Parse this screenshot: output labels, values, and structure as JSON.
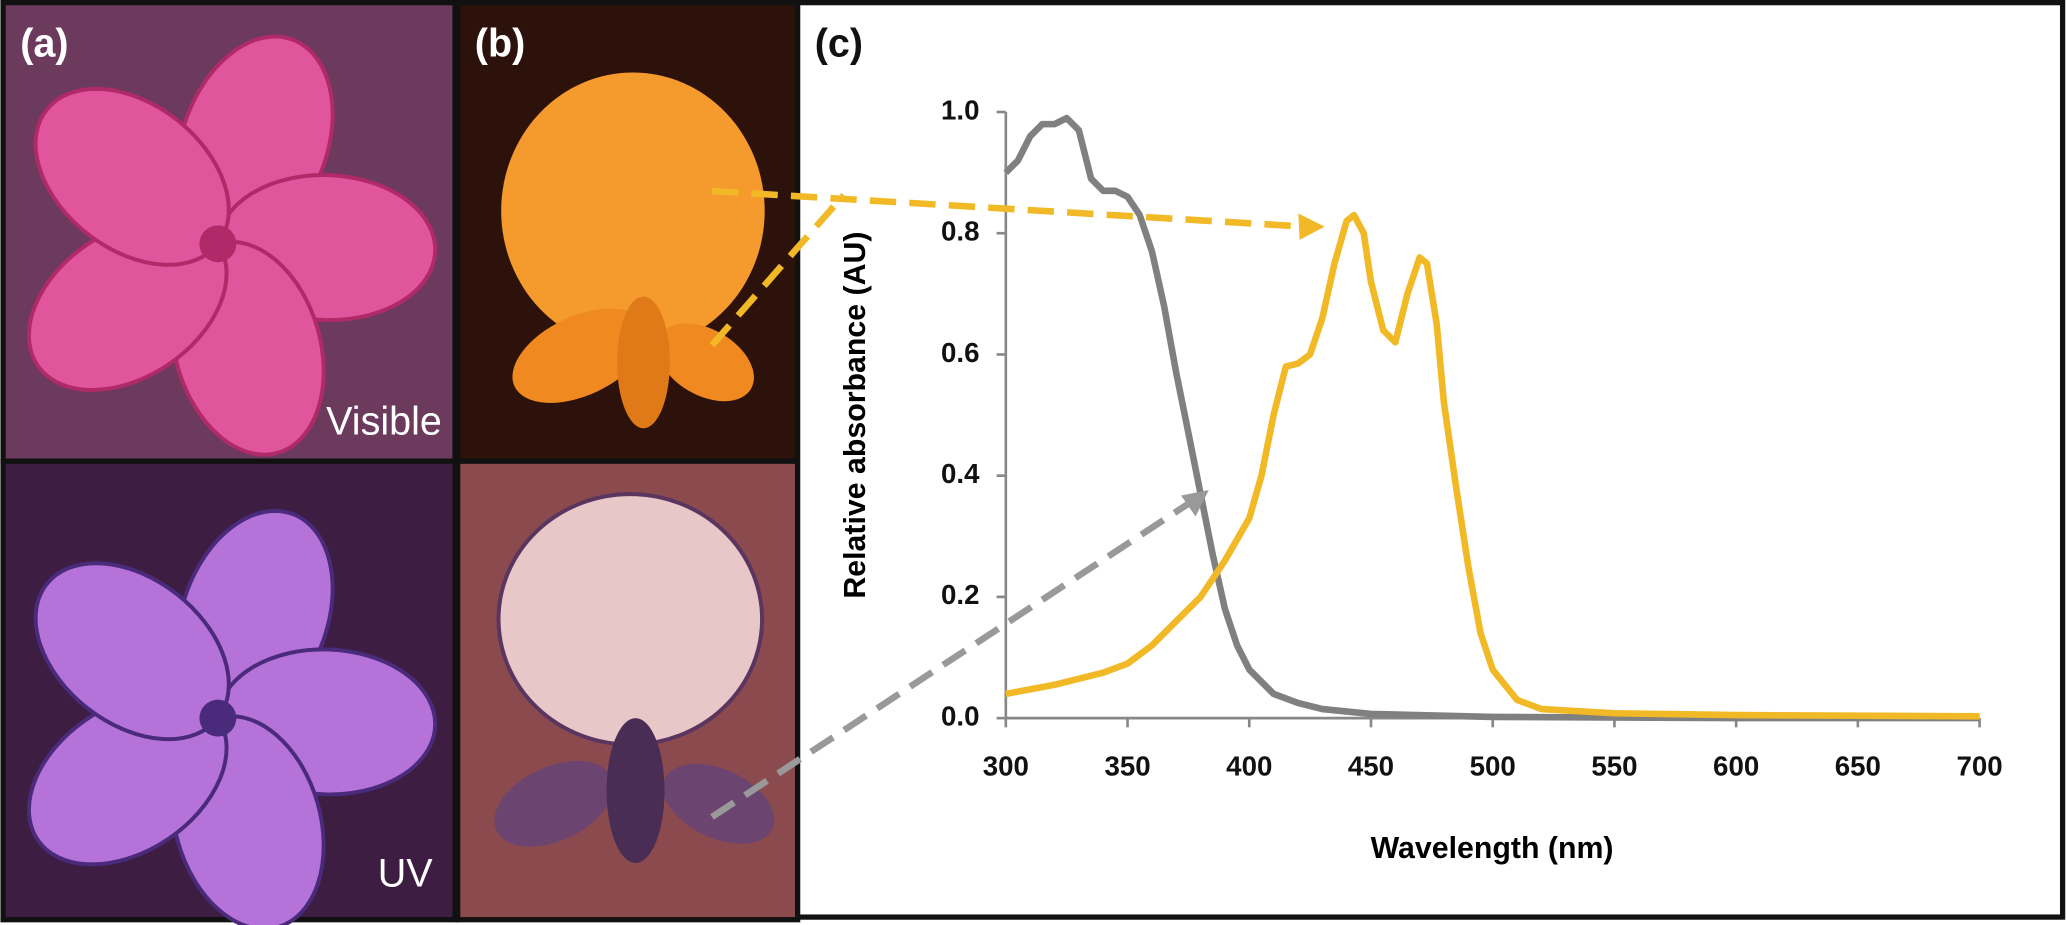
{
  "panels": {
    "a": "(a)",
    "b": "(b)",
    "c": "(c)",
    "visible": "Visible",
    "uv": "UV"
  },
  "chart_data": {
    "type": "line",
    "xlabel": "Wavelength (nm)",
    "ylabel": "Relative absorbance (AU)",
    "xlim": [
      300,
      700
    ],
    "ylim": [
      0,
      1
    ],
    "xticks": [
      300,
      350,
      400,
      450,
      500,
      550,
      600,
      650,
      700
    ],
    "yticks": [
      {
        "value": 0,
        "label": "0.0"
      },
      0.2,
      0.4,
      0.6,
      0.8,
      {
        "value": 1,
        "label": "1.0"
      }
    ],
    "grid": false,
    "series": [
      {
        "color": "#808080",
        "x": [
          300,
          305,
          310,
          315,
          320,
          325,
          330,
          335,
          340,
          345,
          350,
          355,
          360,
          365,
          370,
          375,
          380,
          385,
          390,
          395,
          400,
          410,
          420,
          430,
          450,
          500,
          600,
          700
        ],
        "values": [
          0.9,
          0.92,
          0.96,
          0.98,
          0.98,
          0.99,
          0.97,
          0.89,
          0.87,
          0.87,
          0.86,
          0.83,
          0.77,
          0.68,
          0.57,
          0.47,
          0.37,
          0.27,
          0.18,
          0.12,
          0.08,
          0.04,
          0.025,
          0.015,
          0.007,
          0.002,
          0,
          0
        ]
      },
      {
        "color": "#f2b927",
        "x": [
          300,
          320,
          340,
          350,
          360,
          370,
          380,
          390,
          400,
          405,
          410,
          415,
          420,
          425,
          430,
          435,
          440,
          443,
          447,
          450,
          455,
          460,
          465,
          470,
          473,
          477,
          480,
          485,
          490,
          495,
          500,
          510,
          520,
          550,
          600,
          700
        ],
        "values": [
          0.04,
          0.055,
          0.075,
          0.09,
          0.12,
          0.16,
          0.2,
          0.26,
          0.33,
          0.4,
          0.5,
          0.58,
          0.585,
          0.6,
          0.66,
          0.75,
          0.82,
          0.83,
          0.8,
          0.72,
          0.64,
          0.62,
          0.7,
          0.76,
          0.75,
          0.65,
          0.52,
          0.38,
          0.25,
          0.14,
          0.08,
          0.03,
          0.015,
          0.008,
          0.005,
          0.003
        ]
      }
    ]
  }
}
